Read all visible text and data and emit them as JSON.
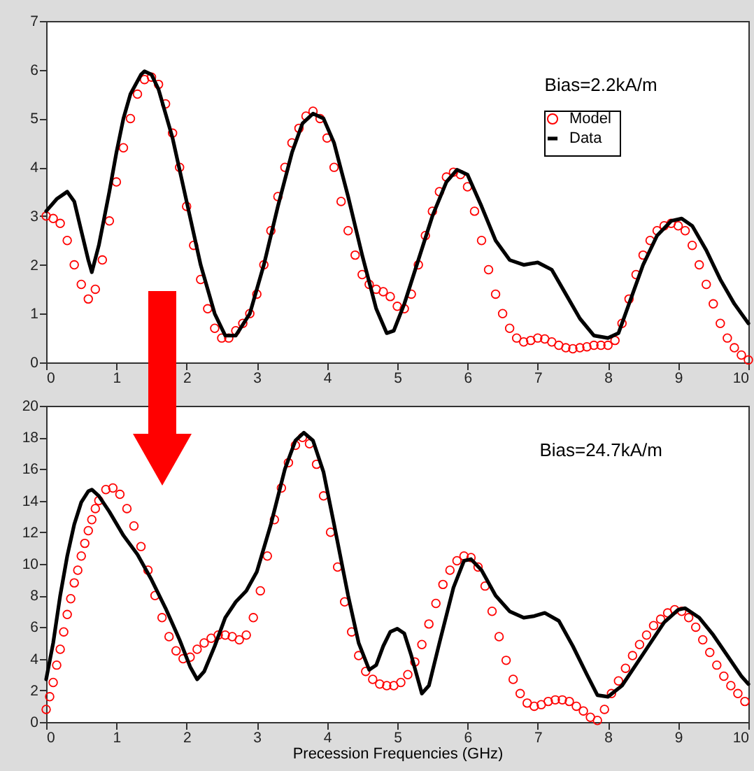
{
  "chart_data": [
    {
      "type": "line",
      "annotations": [
        "Bias=2.2kA/m"
      ],
      "legend": "top right",
      "xlim": [
        0,
        10
      ],
      "xticks": [
        0,
        1,
        2,
        3,
        4,
        5,
        6,
        7,
        8,
        9,
        10
      ],
      "ylim": [
        0,
        7
      ],
      "yticks": [
        0,
        1,
        2,
        3,
        4,
        5,
        6,
        7
      ],
      "series": [
        {
          "name": "Model",
          "type": "scatter",
          "marker": "circle",
          "color": "#ff0000",
          "x": [
            0,
            0.1,
            0.2,
            0.3,
            0.4,
            0.5,
            0.6,
            0.7,
            0.8,
            0.9,
            1.0,
            1.1,
            1.2,
            1.3,
            1.4,
            1.5,
            1.6,
            1.7,
            1.8,
            1.9,
            2.0,
            2.1,
            2.2,
            2.3,
            2.4,
            2.5,
            2.6,
            2.7,
            2.8,
            2.9,
            3.0,
            3.1,
            3.2,
            3.3,
            3.4,
            3.5,
            3.6,
            3.7,
            3.8,
            3.9,
            4.0,
            4.1,
            4.2,
            4.3,
            4.4,
            4.5,
            4.6,
            4.7,
            4.8,
            4.9,
            5.0,
            5.1,
            5.2,
            5.3,
            5.4,
            5.5,
            5.6,
            5.7,
            5.8,
            5.9,
            6.0,
            6.1,
            6.2,
            6.3,
            6.4,
            6.5,
            6.6,
            6.7,
            6.8,
            6.9,
            7.0,
            7.1,
            7.2,
            7.3,
            7.4,
            7.5,
            7.6,
            7.7,
            7.8,
            7.9,
            8.0,
            8.1,
            8.2,
            8.3,
            8.4,
            8.5,
            8.6,
            8.7,
            8.8,
            8.9,
            9.0,
            9.1,
            9.2,
            9.3,
            9.4,
            9.5,
            9.6,
            9.7,
            9.8,
            9.9,
            10
          ],
          "values": [
            3.0,
            2.95,
            2.85,
            2.5,
            2.0,
            1.6,
            1.3,
            1.5,
            2.1,
            2.9,
            3.7,
            4.4,
            5.0,
            5.5,
            5.8,
            5.85,
            5.7,
            5.3,
            4.7,
            4.0,
            3.2,
            2.4,
            1.7,
            1.1,
            0.7,
            0.5,
            0.5,
            0.65,
            0.8,
            1.0,
            1.4,
            2.0,
            2.7,
            3.4,
            4.0,
            4.5,
            4.8,
            5.05,
            5.15,
            5.0,
            4.6,
            4.0,
            3.3,
            2.7,
            2.2,
            1.8,
            1.6,
            1.5,
            1.45,
            1.35,
            1.15,
            1.1,
            1.4,
            2.0,
            2.6,
            3.1,
            3.5,
            3.8,
            3.9,
            3.85,
            3.6,
            3.1,
            2.5,
            1.9,
            1.4,
            1.0,
            0.7,
            0.5,
            0.42,
            0.45,
            0.5,
            0.48,
            0.42,
            0.35,
            0.3,
            0.28,
            0.3,
            0.32,
            0.35,
            0.35,
            0.35,
            0.45,
            0.8,
            1.3,
            1.8,
            2.2,
            2.5,
            2.7,
            2.8,
            2.85,
            2.8,
            2.7,
            2.4,
            2.0,
            1.6,
            1.2,
            0.8,
            0.5,
            0.3,
            0.15,
            0.05
          ]
        },
        {
          "name": "Data",
          "type": "line",
          "color": "#000000",
          "x": [
            0,
            0.15,
            0.3,
            0.4,
            0.5,
            0.6,
            0.65,
            0.75,
            0.9,
            1.0,
            1.1,
            1.2,
            1.35,
            1.4,
            1.5,
            1.6,
            1.8,
            2.0,
            2.2,
            2.4,
            2.55,
            2.7,
            2.9,
            3.1,
            3.3,
            3.5,
            3.65,
            3.8,
            3.95,
            4.1,
            4.3,
            4.5,
            4.7,
            4.85,
            4.95,
            5.1,
            5.3,
            5.5,
            5.7,
            5.85,
            6.0,
            6.2,
            6.4,
            6.6,
            6.8,
            7.0,
            7.2,
            7.4,
            7.6,
            7.8,
            8.0,
            8.15,
            8.3,
            8.5,
            8.7,
            8.9,
            9.05,
            9.2,
            9.4,
            9.6,
            9.8,
            10
          ],
          "values": [
            3.1,
            3.35,
            3.5,
            3.3,
            2.7,
            2.1,
            1.85,
            2.4,
            3.5,
            4.3,
            5.0,
            5.5,
            5.9,
            5.97,
            5.9,
            5.6,
            4.6,
            3.3,
            2.0,
            1.0,
            0.55,
            0.55,
            1.0,
            2.0,
            3.2,
            4.3,
            4.9,
            5.1,
            5.0,
            4.5,
            3.4,
            2.2,
            1.1,
            0.6,
            0.65,
            1.2,
            2.1,
            3.0,
            3.7,
            3.95,
            3.85,
            3.2,
            2.5,
            2.1,
            2.0,
            2.05,
            1.9,
            1.4,
            0.9,
            0.55,
            0.5,
            0.6,
            1.2,
            2.0,
            2.6,
            2.9,
            2.95,
            2.8,
            2.3,
            1.7,
            1.2,
            0.8
          ]
        }
      ]
    },
    {
      "type": "line",
      "annotations": [
        "Bias=24.7kA/m"
      ],
      "xlabel": "Precession Frequencies (GHz)",
      "xlim": [
        0,
        10
      ],
      "xticks": [
        0,
        1,
        2,
        3,
        4,
        5,
        6,
        7,
        8,
        9,
        10
      ],
      "ylim": [
        0,
        20
      ],
      "yticks": [
        0,
        2,
        4,
        6,
        8,
        10,
        12,
        14,
        16,
        18,
        20
      ],
      "series": [
        {
          "type": "scatter",
          "marker": "circle",
          "color": "#ff0000",
          "x": [
            0,
            0.05,
            0.1,
            0.15,
            0.2,
            0.25,
            0.3,
            0.35,
            0.4,
            0.45,
            0.5,
            0.55,
            0.6,
            0.65,
            0.7,
            0.75,
            0.85,
            0.95,
            1.05,
            1.15,
            1.25,
            1.35,
            1.45,
            1.55,
            1.65,
            1.75,
            1.85,
            1.95,
            2.05,
            2.15,
            2.25,
            2.35,
            2.45,
            2.55,
            2.65,
            2.75,
            2.85,
            2.95,
            3.05,
            3.15,
            3.25,
            3.35,
            3.45,
            3.55,
            3.65,
            3.75,
            3.85,
            3.95,
            4.05,
            4.15,
            4.25,
            4.35,
            4.45,
            4.55,
            4.65,
            4.75,
            4.85,
            4.95,
            5.05,
            5.15,
            5.25,
            5.35,
            5.45,
            5.55,
            5.65,
            5.75,
            5.85,
            5.95,
            6.05,
            6.15,
            6.25,
            6.35,
            6.45,
            6.55,
            6.65,
            6.75,
            6.85,
            6.95,
            7.05,
            7.15,
            7.25,
            7.35,
            7.45,
            7.55,
            7.65,
            7.75,
            7.85,
            7.95,
            8.05,
            8.15,
            8.25,
            8.35,
            8.45,
            8.55,
            8.65,
            8.75,
            8.85,
            8.95,
            9.05,
            9.15,
            9.25,
            9.35,
            9.45,
            9.55,
            9.65,
            9.75,
            9.85,
            9.95
          ],
          "values": [
            0.8,
            1.6,
            2.5,
            3.6,
            4.6,
            5.7,
            6.8,
            7.8,
            8.8,
            9.6,
            10.5,
            11.3,
            12.1,
            12.8,
            13.5,
            14.0,
            14.7,
            14.8,
            14.4,
            13.5,
            12.4,
            11.1,
            9.6,
            8.0,
            6.6,
            5.4,
            4.5,
            4.0,
            4.1,
            4.6,
            5.0,
            5.3,
            5.5,
            5.5,
            5.4,
            5.2,
            5.5,
            6.6,
            8.3,
            10.5,
            12.8,
            14.8,
            16.4,
            17.5,
            18.0,
            17.6,
            16.3,
            14.3,
            12.0,
            9.8,
            7.6,
            5.7,
            4.2,
            3.2,
            2.7,
            2.4,
            2.3,
            2.3,
            2.5,
            3.0,
            3.8,
            4.9,
            6.2,
            7.5,
            8.7,
            9.6,
            10.2,
            10.5,
            10.4,
            9.8,
            8.6,
            7.0,
            5.4,
            3.9,
            2.7,
            1.8,
            1.2,
            1.0,
            1.1,
            1.3,
            1.4,
            1.4,
            1.3,
            1.0,
            0.7,
            0.3,
            0.1,
            0.8,
            1.8,
            2.6,
            3.4,
            4.2,
            4.9,
            5.5,
            6.1,
            6.5,
            6.9,
            7.1,
            7.0,
            6.6,
            6.0,
            5.2,
            4.4,
            3.6,
            2.9,
            2.3,
            1.8,
            1.3
          ]
        },
        {
          "type": "line",
          "color": "#000000",
          "x": [
            0,
            0.1,
            0.2,
            0.3,
            0.4,
            0.5,
            0.6,
            0.65,
            0.75,
            0.9,
            1.1,
            1.3,
            1.5,
            1.7,
            1.9,
            2.05,
            2.15,
            2.25,
            2.4,
            2.55,
            2.7,
            2.85,
            3.0,
            3.2,
            3.4,
            3.55,
            3.67,
            3.8,
            3.95,
            4.1,
            4.3,
            4.45,
            4.6,
            4.7,
            4.8,
            4.9,
            5.0,
            5.1,
            5.2,
            5.35,
            5.45,
            5.6,
            5.8,
            5.95,
            6.05,
            6.2,
            6.4,
            6.6,
            6.8,
            6.95,
            7.1,
            7.3,
            7.5,
            7.7,
            7.85,
            8.0,
            8.2,
            8.5,
            8.8,
            9.0,
            9.1,
            9.3,
            9.5,
            9.7,
            9.9,
            10
          ],
          "values": [
            2.7,
            5.0,
            8.0,
            10.5,
            12.5,
            13.9,
            14.6,
            14.7,
            14.3,
            13.3,
            11.8,
            10.6,
            9.0,
            7.2,
            5.2,
            3.5,
            2.7,
            3.2,
            4.8,
            6.6,
            7.6,
            8.3,
            9.5,
            12.5,
            16.0,
            17.8,
            18.3,
            17.8,
            15.8,
            12.5,
            8.0,
            5.0,
            3.3,
            3.6,
            4.8,
            5.7,
            5.9,
            5.6,
            4.2,
            1.8,
            2.3,
            5.0,
            8.5,
            10.2,
            10.3,
            9.6,
            8.0,
            7.0,
            6.6,
            6.7,
            6.9,
            6.4,
            4.8,
            3.0,
            1.7,
            1.6,
            2.3,
            4.3,
            6.3,
            7.1,
            7.2,
            6.6,
            5.5,
            4.2,
            2.9,
            2.4
          ]
        }
      ]
    }
  ]
}
